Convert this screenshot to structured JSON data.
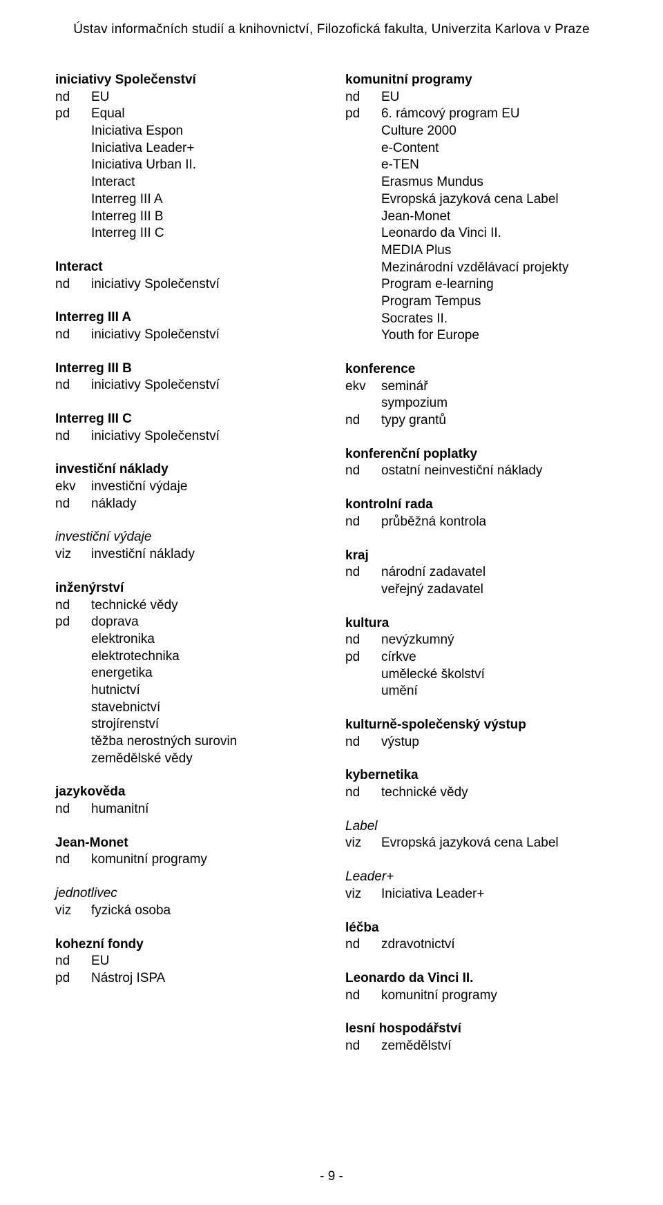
{
  "header": "Ústav informačních studií a knihovnictví, Filozofická fakulta,  Univerzita Karlova v Praze",
  "footer": "- 9 -",
  "left": [
    {
      "title": "iniciativy Společenství",
      "entries": [
        {
          "p": "nd",
          "v": "EU"
        },
        {
          "p": "pd",
          "v": "Equal"
        },
        {
          "p": "",
          "v": "Iniciativa Espon"
        },
        {
          "p": "",
          "v": "Iniciativa Leader+"
        },
        {
          "p": "",
          "v": "Iniciativa Urban II."
        },
        {
          "p": "",
          "v": "Interact"
        },
        {
          "p": "",
          "v": "Interreg III A"
        },
        {
          "p": "",
          "v": "Interreg III B"
        },
        {
          "p": "",
          "v": "Interreg III C"
        }
      ]
    },
    {
      "title": "Interact",
      "entries": [
        {
          "p": "nd",
          "v": "iniciativy Společenství"
        }
      ]
    },
    {
      "title": "Interreg III A",
      "entries": [
        {
          "p": "nd",
          "v": "iniciativy Společenství"
        }
      ]
    },
    {
      "title": "Interreg III B",
      "entries": [
        {
          "p": "nd",
          "v": "iniciativy Společenství"
        }
      ]
    },
    {
      "title": "Interreg III C",
      "entries": [
        {
          "p": "nd",
          "v": "iniciativy Společenství"
        }
      ]
    },
    {
      "title": "investiční náklady",
      "entries": [
        {
          "p": "ekv",
          "v": "investiční výdaje"
        },
        {
          "p": "nd",
          "v": "náklady"
        }
      ]
    },
    {
      "title": "investiční výdaje",
      "titleItalic": true,
      "entries": [
        {
          "p": "viz",
          "v": "investiční náklady"
        }
      ]
    },
    {
      "title": "inženýrství",
      "entries": [
        {
          "p": "nd",
          "v": "technické vědy"
        },
        {
          "p": "pd",
          "v": "doprava"
        },
        {
          "p": "",
          "v": "elektronika"
        },
        {
          "p": "",
          "v": "elektrotechnika"
        },
        {
          "p": "",
          "v": "energetika"
        },
        {
          "p": "",
          "v": "hutnictví"
        },
        {
          "p": "",
          "v": "stavebnictví"
        },
        {
          "p": "",
          "v": "strojírenství"
        },
        {
          "p": "",
          "v": "těžba nerostných surovin"
        },
        {
          "p": "",
          "v": "zemědělské vědy"
        }
      ]
    },
    {
      "title": "jazykověda",
      "entries": [
        {
          "p": "nd",
          "v": "humanitní"
        }
      ]
    },
    {
      "title": "Jean-Monet",
      "entries": [
        {
          "p": "nd",
          "v": "komunitní programy"
        }
      ]
    },
    {
      "title": "jednotlivec",
      "titleItalic": true,
      "entries": [
        {
          "p": "viz",
          "v": "fyzická osoba"
        }
      ]
    },
    {
      "title": "kohezní fondy",
      "entries": [
        {
          "p": "nd",
          "v": "EU"
        },
        {
          "p": "pd",
          "v": "Nástroj ISPA"
        }
      ]
    }
  ],
  "right": [
    {
      "title": "komunitní programy",
      "entries": [
        {
          "p": "nd",
          "v": "EU"
        },
        {
          "p": "pd",
          "v": "6. rámcový program EU"
        },
        {
          "p": "",
          "v": "Culture 2000"
        },
        {
          "p": "",
          "v": "e-Content"
        },
        {
          "p": "",
          "v": "e-TEN"
        },
        {
          "p": "",
          "v": "Erasmus Mundus"
        },
        {
          "p": "",
          "v": "Evropská jazyková cena Label"
        },
        {
          "p": "",
          "v": "Jean-Monet"
        },
        {
          "p": "",
          "v": "Leonardo da Vinci II."
        },
        {
          "p": "",
          "v": "MEDIA Plus"
        },
        {
          "p": "",
          "v": "Mezinárodní vzdělávací projekty"
        },
        {
          "p": "",
          "v": "Program e-learning"
        },
        {
          "p": "",
          "v": "Program Tempus"
        },
        {
          "p": "",
          "v": "Socrates II."
        },
        {
          "p": "",
          "v": "Youth for Europe"
        }
      ]
    },
    {
      "title": "konference",
      "entries": [
        {
          "p": "ekv",
          "v": "seminář"
        },
        {
          "p": "",
          "v": "sympozium"
        },
        {
          "p": "nd",
          "v": "typy grantů"
        }
      ]
    },
    {
      "title": "konferenční poplatky",
      "entries": [
        {
          "p": "nd",
          "v": "ostatní neinvestiční náklady"
        }
      ]
    },
    {
      "title": "kontrolní rada",
      "entries": [
        {
          "p": "nd",
          "v": "průběžná kontrola"
        }
      ]
    },
    {
      "title": "kraj",
      "entries": [
        {
          "p": "nd",
          "v": "národní zadavatel"
        },
        {
          "p": "",
          "v": "veřejný zadavatel"
        }
      ]
    },
    {
      "title": "kultura",
      "entries": [
        {
          "p": "nd",
          "v": "nevýzkumný"
        },
        {
          "p": "pd",
          "v": "církve"
        },
        {
          "p": "",
          "v": "umělecké školství"
        },
        {
          "p": "",
          "v": "umění"
        }
      ]
    },
    {
      "title": "kulturně-společenský výstup",
      "entries": [
        {
          "p": "nd",
          "v": "výstup"
        }
      ]
    },
    {
      "title": "kybernetika",
      "entries": [
        {
          "p": "nd",
          "v": "technické vědy"
        }
      ]
    },
    {
      "title": "Label",
      "titleItalic": true,
      "entries": [
        {
          "p": "viz",
          "v": "Evropská jazyková cena Label"
        }
      ]
    },
    {
      "title": "Leader+",
      "titleItalic": true,
      "entries": [
        {
          "p": "viz",
          "v": "Iniciativa Leader+"
        }
      ]
    },
    {
      "title": "léčba",
      "entries": [
        {
          "p": "nd",
          "v": "zdravotnictví"
        }
      ]
    },
    {
      "title": "Leonardo da Vinci II.",
      "entries": [
        {
          "p": "nd",
          "v": "komunitní programy"
        }
      ]
    },
    {
      "title": "lesní hospodářství",
      "entries": [
        {
          "p": "nd",
          "v": "zemědělství"
        }
      ]
    }
  ]
}
